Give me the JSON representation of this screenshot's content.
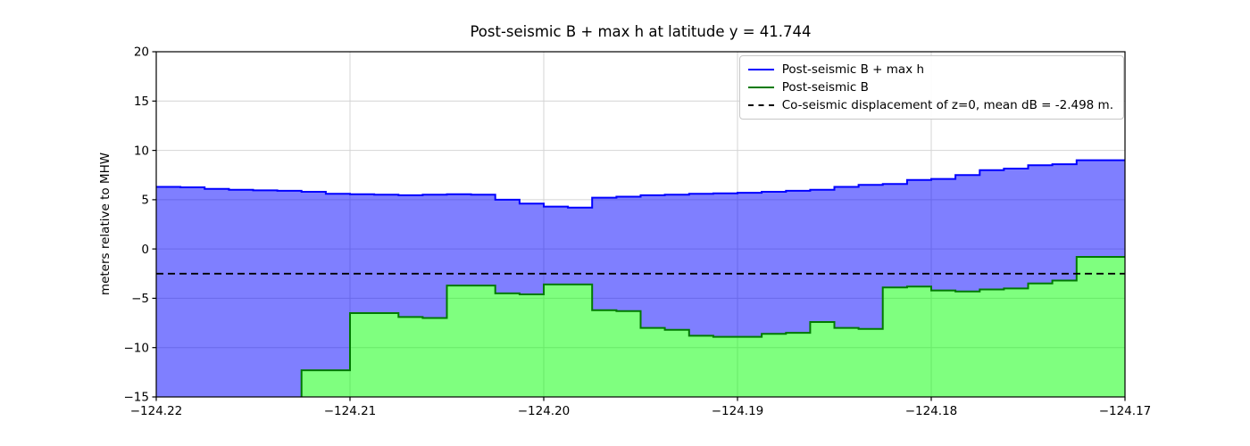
{
  "chart_data": {
    "type": "area",
    "title": "Post-seismic B + max h at latitude y = 41.744",
    "ylabel": "meters relative to MHW",
    "xlabel": "",
    "xlim": [
      -124.22,
      -124.17
    ],
    "ylim": [
      -15,
      20
    ],
    "xticks": [
      -124.22,
      -124.21,
      -124.2,
      -124.19,
      -124.18,
      -124.17
    ],
    "xtick_labels": [
      "−124.22",
      "−124.21",
      "−124.20",
      "−124.19",
      "−124.18",
      "−124.17"
    ],
    "yticks": [
      -15,
      -10,
      -5,
      0,
      5,
      10,
      15,
      20
    ],
    "ytick_labels": [
      "−15",
      "−10",
      "−5",
      "0",
      "5",
      "10",
      "15",
      "20"
    ],
    "grid": true,
    "legend_position": "upper right",
    "x_start": -124.22,
    "bin_width": 0.00125,
    "series": [
      {
        "name": "Post-seismic B + max h",
        "line_color": "#0000ff",
        "fill_color": "rgba(0,0,255,0.5)",
        "values": [
          6.3,
          6.25,
          6.1,
          6.0,
          5.95,
          5.9,
          5.8,
          5.6,
          5.55,
          5.5,
          5.45,
          5.5,
          5.55,
          5.5,
          5.0,
          4.6,
          4.3,
          4.2,
          5.2,
          5.3,
          5.45,
          5.5,
          5.6,
          5.65,
          5.7,
          5.8,
          5.9,
          6.0,
          6.3,
          6.5,
          6.6,
          7.0,
          7.1,
          7.5,
          8.0,
          8.15,
          8.5,
          8.6,
          9.0,
          9.0
        ]
      },
      {
        "name": "Post-seismic B",
        "line_color": "#007a00",
        "fill_color": "rgba(0,255,0,0.5)",
        "values": [
          -16,
          -16,
          -16,
          -16,
          -16,
          -16,
          -12.3,
          -12.3,
          -6.5,
          -6.5,
          -6.9,
          -7.0,
          -3.7,
          -3.7,
          -4.5,
          -4.6,
          -3.6,
          -3.6,
          -6.2,
          -6.3,
          -8.0,
          -8.2,
          -8.8,
          -8.9,
          -8.9,
          -8.6,
          -8.5,
          -7.4,
          -8.0,
          -8.1,
          -3.9,
          -3.8,
          -4.2,
          -4.3,
          -4.1,
          -4.0,
          -3.5,
          -3.2,
          -0.8,
          -0.8
        ]
      }
    ],
    "hline": {
      "label": "Co-seismic displacement of z=0, mean dB = -2.498 m.",
      "y": -2.498,
      "style": "dashed",
      "color": "#000000"
    }
  }
}
